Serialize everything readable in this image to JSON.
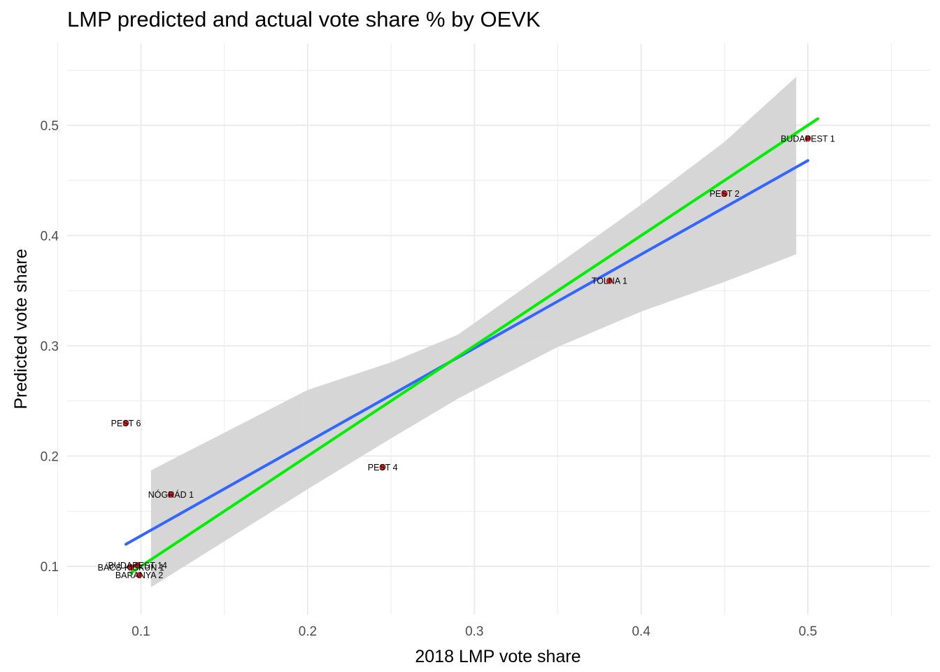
{
  "chart_data": {
    "type": "scatter",
    "title": "LMP predicted and actual vote share % by OEVK",
    "xlabel": "2018 LMP vote share",
    "ylabel": "Predicted vote share",
    "xlim": [
      0.056,
      0.55
    ],
    "ylim": [
      0.061,
      0.55
    ],
    "x_ticks": [
      {
        "value": 0.1,
        "label": "0.1"
      },
      {
        "value": 0.2,
        "label": "0.2"
      },
      {
        "value": 0.3,
        "label": "0.3"
      },
      {
        "value": 0.4,
        "label": "0.4"
      },
      {
        "value": 0.5,
        "label": "0.5"
      }
    ],
    "y_ticks": [
      {
        "value": 0.1,
        "label": "0.1"
      },
      {
        "value": 0.2,
        "label": "0.2"
      },
      {
        "value": 0.3,
        "label": "0.3"
      },
      {
        "value": 0.4,
        "label": "0.4"
      },
      {
        "value": 0.5,
        "label": "0.5"
      }
    ],
    "grid": true,
    "colors": {
      "points": "#cc1f1f",
      "regression_line": "#3366ff",
      "identity_line": "#00ee00",
      "confidence_band": "#d4d4d4",
      "grid": "#ebebeb"
    },
    "points": [
      {
        "label": "BUDAPEST 1",
        "x": 0.5,
        "y": 0.488
      },
      {
        "label": "PEST 2",
        "x": 0.45,
        "y": 0.438
      },
      {
        "label": "TOLNA 1",
        "x": 0.381,
        "y": 0.359
      },
      {
        "label": "PEST 4",
        "x": 0.245,
        "y": 0.19
      },
      {
        "label": "PEST 6",
        "x": 0.091,
        "y": 0.23
      },
      {
        "label": "NÓGRÁD 1",
        "x": 0.118,
        "y": 0.165
      },
      {
        "label": "BUDAPEST 14",
        "x": 0.098,
        "y": 0.101
      },
      {
        "label": "BÁCS-KISKUN 1",
        "x": 0.094,
        "y": 0.099
      },
      {
        "label": "BARANYA 2",
        "x": 0.099,
        "y": 0.092
      }
    ],
    "regression_line": {
      "x": [
        0.091,
        0.5
      ],
      "y": [
        0.12,
        0.468
      ]
    },
    "confidence_band": {
      "x": [
        0.106,
        0.2,
        0.25,
        0.29,
        0.35,
        0.4,
        0.45,
        0.493
      ],
      "lower": [
        0.081,
        0.17,
        0.216,
        0.252,
        0.299,
        0.331,
        0.358,
        0.383
      ],
      "upper": [
        0.187,
        0.26,
        0.285,
        0.31,
        0.374,
        0.428,
        0.485,
        0.544
      ]
    },
    "identity_line": {
      "x": [
        0.094,
        0.506
      ],
      "y": [
        0.094,
        0.506
      ]
    }
  }
}
